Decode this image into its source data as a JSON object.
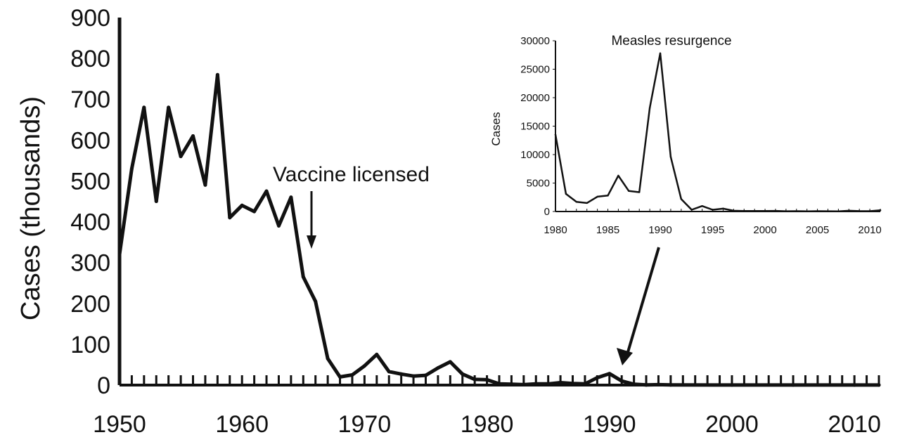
{
  "chart_data": [
    {
      "type": "line",
      "title": "",
      "xlabel": "",
      "ylabel": "Cases (thousands)",
      "xlim": [
        1950,
        2012
      ],
      "ylim": [
        0,
        900
      ],
      "x_ticks": [
        1950,
        1960,
        1970,
        1980,
        1990,
        2000,
        2010
      ],
      "y_ticks": [
        0,
        100,
        200,
        300,
        400,
        500,
        600,
        700,
        800,
        900
      ],
      "grid": false,
      "series": [
        {
          "x": [
            1950,
            1951,
            1952,
            1953,
            1954,
            1955,
            1956,
            1957,
            1958,
            1959,
            1960,
            1961,
            1962,
            1963,
            1964,
            1965,
            1966,
            1967,
            1968,
            1969,
            1970,
            1971,
            1972,
            1973,
            1974,
            1975,
            1976,
            1977,
            1978,
            1979,
            1980,
            1981,
            1982,
            1983,
            1984,
            1985,
            1986,
            1987,
            1988,
            1989,
            1990,
            1991,
            1992,
            1993,
            1994,
            1995,
            2000,
            2005,
            2010,
            2012
          ],
          "y": [
            320,
            530,
            680,
            450,
            680,
            560,
            610,
            490,
            760,
            410,
            440,
            425,
            475,
            390,
            460,
            265,
            205,
            65,
            20,
            25,
            47,
            75,
            33,
            27,
            22,
            24,
            42,
            57,
            27,
            14,
            13,
            3,
            2,
            1,
            3,
            3,
            6,
            4,
            3,
            18,
            28,
            10,
            2,
            0.3,
            1,
            0.3,
            0.1,
            0.1,
            0.1,
            0.1
          ]
        }
      ],
      "annotations": [
        {
          "text": "Vaccine licensed",
          "x": 1963,
          "y": 0
        }
      ]
    },
    {
      "type": "line",
      "title": "Measles resurgence",
      "xlabel": "",
      "ylabel": "Cases",
      "xlim": [
        1980,
        2011
      ],
      "ylim": [
        0,
        30000
      ],
      "x_ticks": [
        1980,
        1985,
        1990,
        1995,
        2000,
        2005,
        2010
      ],
      "y_ticks": [
        0,
        5000,
        10000,
        15000,
        20000,
        25000,
        30000
      ],
      "grid": false,
      "series": [
        {
          "x": [
            1980,
            1981,
            1982,
            1983,
            1984,
            1985,
            1986,
            1987,
            1988,
            1989,
            1990,
            1991,
            1992,
            1993,
            1994,
            1995,
            1996,
            1997,
            1998,
            1999,
            2000,
            2001,
            2002,
            2003,
            2004,
            2005,
            2006,
            2007,
            2008,
            2009,
            2010,
            2011
          ],
          "y": [
            13500,
            3100,
            1700,
            1500,
            2600,
            2800,
            6300,
            3600,
            3400,
            18200,
            27800,
            9600,
            2200,
            312,
            963,
            309,
            508,
            138,
            100,
            100,
            86,
            116,
            44,
            56,
            37,
            66,
            55,
            43,
            140,
            71,
            63,
            220
          ]
        }
      ]
    }
  ]
}
